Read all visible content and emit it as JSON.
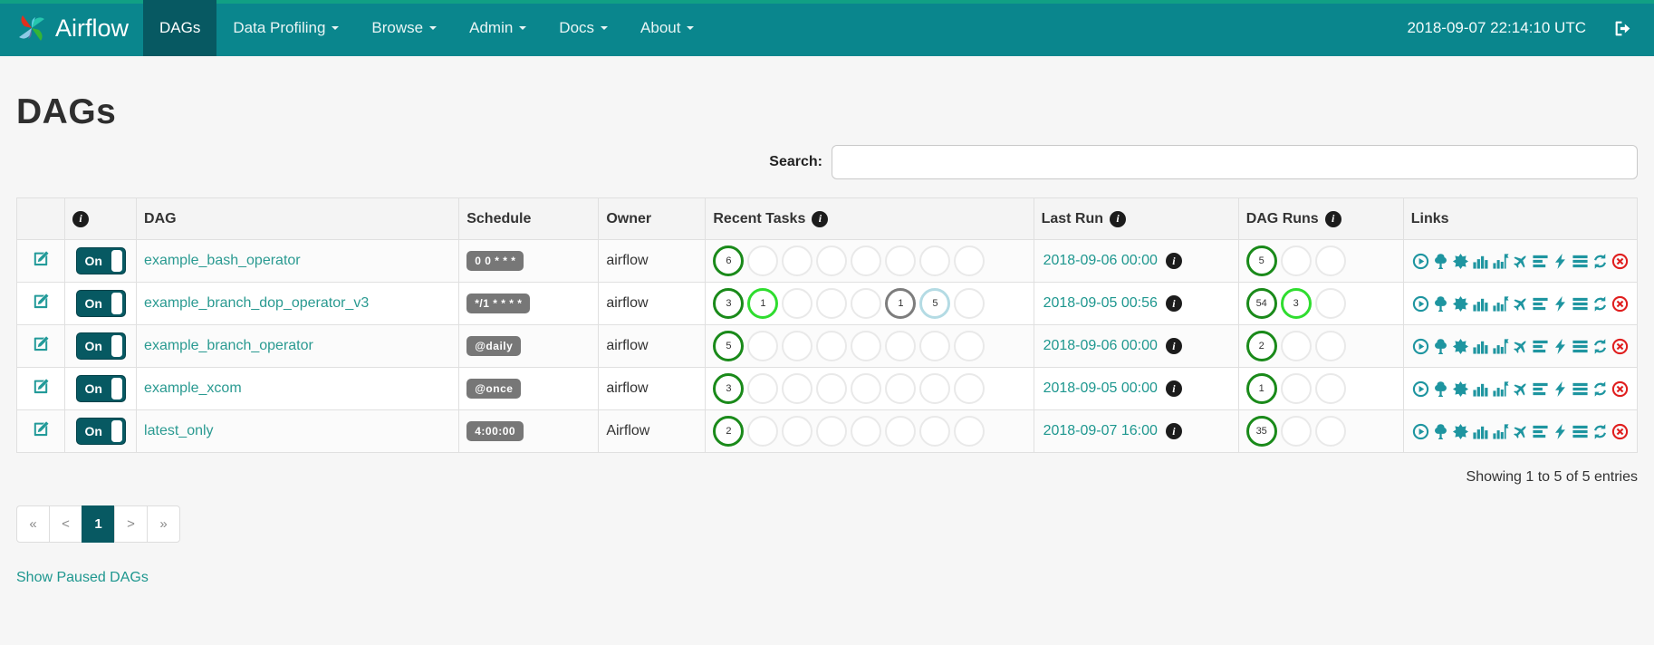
{
  "colors": {
    "navbar_bg": "#0a868d",
    "active_dark_teal": "#075962",
    "link_teal": "#2a9a91",
    "icon_teal": "#1e95a0",
    "delete_red": "#e01f1f",
    "badge_gray": "#777777",
    "states": {
      "success": "#1a8a1a",
      "running": "#2fdd2f",
      "queued": "#7d7d7d",
      "none": "#b4dbe4",
      "empty": "#e9e9e9"
    }
  },
  "navbar": {
    "brand": "Airflow",
    "items": [
      {
        "label": "DAGs",
        "active": true,
        "caret": false
      },
      {
        "label": "Data Profiling",
        "active": false,
        "caret": true
      },
      {
        "label": "Browse",
        "active": false,
        "caret": true
      },
      {
        "label": "Admin",
        "active": false,
        "caret": true
      },
      {
        "label": "Docs",
        "active": false,
        "caret": true
      },
      {
        "label": "About",
        "active": false,
        "caret": true
      }
    ],
    "clock": "2018-09-07 22:14:10 UTC"
  },
  "page": {
    "title": "DAGs",
    "search_label": "Search:",
    "search_value": "",
    "summary": "Showing 1 to 5 of 5 entries",
    "show_paused_label": "Show Paused DAGs"
  },
  "table": {
    "headers": {
      "dag": "DAG",
      "schedule": "Schedule",
      "owner": "Owner",
      "recent_tasks": "Recent Tasks",
      "last_run": "Last Run",
      "dag_runs": "DAG Runs",
      "links": "Links"
    },
    "rows": [
      {
        "toggle": "On",
        "dag": "example_bash_operator",
        "schedule": "0 0 * * *",
        "owner": "airflow",
        "recent_tasks": [
          {
            "value": "6",
            "state": "success"
          },
          null,
          null,
          null,
          null,
          null,
          null,
          null
        ],
        "last_run": "2018-09-06 00:00",
        "dag_runs": [
          {
            "value": "5",
            "state": "success"
          },
          null,
          null
        ]
      },
      {
        "toggle": "On",
        "dag": "example_branch_dop_operator_v3",
        "schedule": "*/1 * * * *",
        "owner": "airflow",
        "recent_tasks": [
          {
            "value": "3",
            "state": "success"
          },
          {
            "value": "1",
            "state": "running"
          },
          null,
          null,
          null,
          {
            "value": "1",
            "state": "queued"
          },
          {
            "value": "5",
            "state": "none"
          },
          null
        ],
        "last_run": "2018-09-05 00:56",
        "dag_runs": [
          {
            "value": "54",
            "state": "success"
          },
          {
            "value": "3",
            "state": "running"
          },
          null
        ]
      },
      {
        "toggle": "On",
        "dag": "example_branch_operator",
        "schedule": "@daily",
        "owner": "airflow",
        "recent_tasks": [
          {
            "value": "5",
            "state": "success"
          },
          null,
          null,
          null,
          null,
          null,
          null,
          null
        ],
        "last_run": "2018-09-06 00:00",
        "dag_runs": [
          {
            "value": "2",
            "state": "success"
          },
          null,
          null
        ]
      },
      {
        "toggle": "On",
        "dag": "example_xcom",
        "schedule": "@once",
        "owner": "airflow",
        "recent_tasks": [
          {
            "value": "3",
            "state": "success"
          },
          null,
          null,
          null,
          null,
          null,
          null,
          null
        ],
        "last_run": "2018-09-05 00:00",
        "dag_runs": [
          {
            "value": "1",
            "state": "success"
          },
          null,
          null
        ]
      },
      {
        "toggle": "On",
        "dag": "latest_only",
        "schedule": "4:00:00",
        "owner": "Airflow",
        "recent_tasks": [
          {
            "value": "2",
            "state": "success"
          },
          null,
          null,
          null,
          null,
          null,
          null,
          null
        ],
        "last_run": "2018-09-07 16:00",
        "dag_runs": [
          {
            "value": "35",
            "state": "success"
          },
          null,
          null
        ]
      }
    ]
  },
  "links": {
    "icons": [
      {
        "name": "trigger-dag-icon",
        "glyph": "play-circle"
      },
      {
        "name": "tree-view-icon",
        "glyph": "tree"
      },
      {
        "name": "graph-view-icon",
        "glyph": "starburst"
      },
      {
        "name": "task-duration-icon",
        "glyph": "bar-chart"
      },
      {
        "name": "task-tries-icon",
        "glyph": "bar-chart-flag"
      },
      {
        "name": "landing-times-icon",
        "glyph": "plane"
      },
      {
        "name": "gantt-view-icon",
        "glyph": "align-left"
      },
      {
        "name": "code-view-icon",
        "glyph": "bolt"
      },
      {
        "name": "logs-icon",
        "glyph": "align-justify"
      },
      {
        "name": "refresh-icon",
        "glyph": "refresh"
      },
      {
        "name": "delete-dag-icon",
        "glyph": "times-circle"
      }
    ]
  },
  "pagination": {
    "items": [
      {
        "label": "«",
        "active": false
      },
      {
        "label": "<",
        "active": false
      },
      {
        "label": "1",
        "active": true
      },
      {
        "label": ">",
        "active": false
      },
      {
        "label": "»",
        "active": false
      }
    ]
  }
}
